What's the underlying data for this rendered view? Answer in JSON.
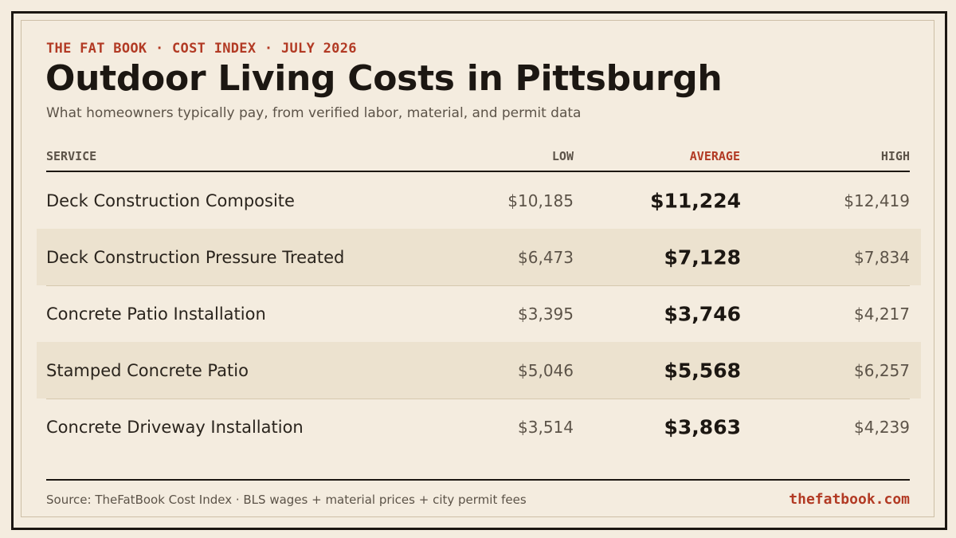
{
  "header": {
    "eyebrow": "THE FAT BOOK · COST INDEX · JULY 2026",
    "title": "Outdoor Living Costs in Pittsburgh",
    "subtitle": "What homeowners typically pay, from verified labor, material, and permit data"
  },
  "table": {
    "columns": {
      "service": "SERVICE",
      "low": "LOW",
      "average": "AVERAGE",
      "high": "HIGH"
    },
    "rows": [
      {
        "service": "Deck Construction Composite",
        "low": "$10,185",
        "average": "$11,224",
        "high": "$12,419"
      },
      {
        "service": "Deck Construction Pressure Treated",
        "low": "$6,473",
        "average": "$7,128",
        "high": "$7,834"
      },
      {
        "service": "Concrete Patio Installation",
        "low": "$3,395",
        "average": "$3,746",
        "high": "$4,217"
      },
      {
        "service": "Stamped Concrete Patio",
        "low": "$5,046",
        "average": "$5,568",
        "high": "$6,257"
      },
      {
        "service": "Concrete Driveway Installation",
        "low": "$3,514",
        "average": "$3,863",
        "high": "$4,239"
      }
    ]
  },
  "footer": {
    "source": "Source: TheFatBook Cost Index · BLS wages + material prices + city permit fees",
    "brand": "thefatbook.com"
  },
  "colors": {
    "background": "#f4ecdf",
    "accent": "#b23a24",
    "ink": "#1c1712",
    "row_shade": "#ece2cf"
  }
}
